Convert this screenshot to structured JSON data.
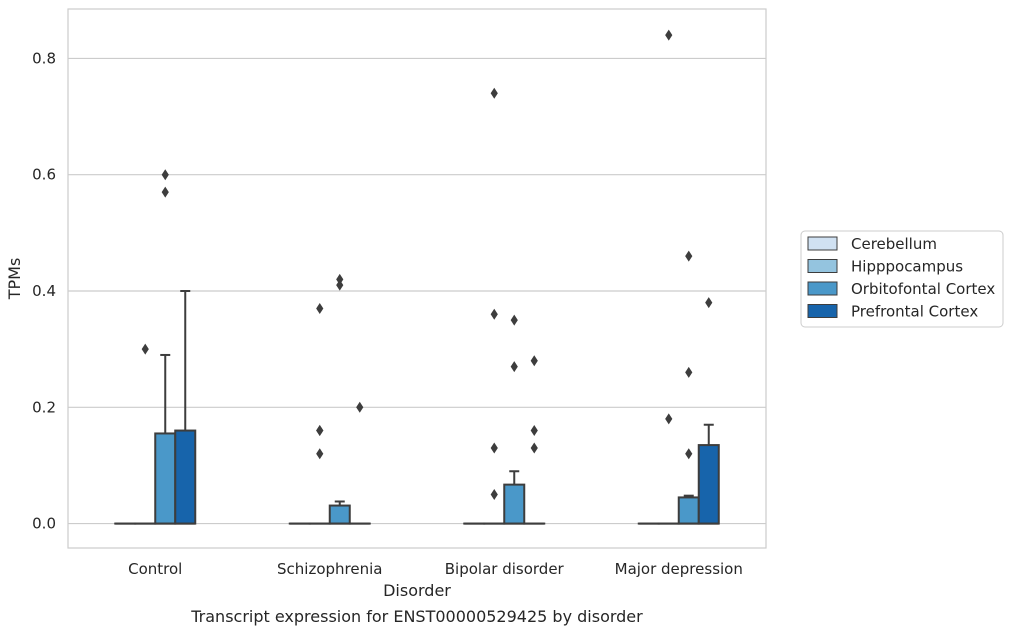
{
  "chart_data": {
    "type": "box",
    "xlabel": "Disorder",
    "ylabel": "TPMs",
    "caption": "Transcript expression for ENST00000529425 by disorder",
    "ylim": [
      -0.042,
      0.885
    ],
    "yticks": [
      0.0,
      0.2,
      0.4,
      0.6,
      0.8
    ],
    "ytick_labels": [
      "0.0",
      "0.2",
      "0.4",
      "0.6",
      "0.8"
    ],
    "grid": "horizontal",
    "legend_position": "right",
    "categories": [
      "Control",
      "Schizophrenia",
      "Bipolar disorder",
      "Major depression"
    ],
    "series": [
      {
        "name": "Cerebellum",
        "color": "#d0e1f2",
        "boxes": [
          {
            "q1": 0,
            "median": 0,
            "q3": 0,
            "whisker_low": 0,
            "whisker_high": 0,
            "outliers": []
          },
          {
            "q1": 0,
            "median": 0,
            "q3": 0,
            "whisker_low": 0,
            "whisker_high": 0,
            "outliers": []
          },
          {
            "q1": 0,
            "median": 0,
            "q3": 0,
            "whisker_low": 0,
            "whisker_high": 0,
            "outliers": []
          },
          {
            "q1": 0,
            "median": 0,
            "q3": 0,
            "whisker_low": 0,
            "whisker_high": 0,
            "outliers": []
          }
        ]
      },
      {
        "name": "Hipppocampus",
        "color": "#94c4df",
        "boxes": [
          {
            "q1": 0,
            "median": 0,
            "q3": 0,
            "whisker_low": 0,
            "whisker_high": 0,
            "outliers": [
              0.3
            ]
          },
          {
            "q1": 0,
            "median": 0,
            "q3": 0,
            "whisker_low": 0,
            "whisker_high": 0,
            "outliers": [
              0.16,
              0.37,
              0.16,
              0.12
            ]
          },
          {
            "q1": 0,
            "median": 0,
            "q3": 0,
            "whisker_low": 0,
            "whisker_high": 0,
            "outliers": [
              0.36,
              0.13,
              0.05,
              0.74
            ]
          },
          {
            "q1": 0,
            "median": 0,
            "q3": 0,
            "whisker_low": 0,
            "whisker_high": 0,
            "outliers": [
              0.84,
              0.18
            ]
          }
        ]
      },
      {
        "name": "Orbitofontal Cortex",
        "color": "#4a98c9",
        "boxes": [
          {
            "q1": 0,
            "median": 0,
            "q3": 0.155,
            "whisker_low": 0,
            "whisker_high": 0.29,
            "outliers": [
              0.6,
              0.57
            ]
          },
          {
            "q1": 0,
            "median": 0,
            "q3": 0.031,
            "whisker_low": 0,
            "whisker_high": 0.038,
            "outliers": [
              0.42,
              0.41
            ]
          },
          {
            "q1": 0,
            "median": 0,
            "q3": 0.067,
            "whisker_low": 0,
            "whisker_high": 0.09,
            "outliers": [
              0.35,
              0.27
            ]
          },
          {
            "q1": 0,
            "median": 0,
            "q3": 0.045,
            "whisker_low": 0,
            "whisker_high": 0.048,
            "outliers": [
              0.46,
              0.26,
              0.12
            ]
          }
        ]
      },
      {
        "name": "Prefrontal Cortex",
        "color": "#1764ab",
        "boxes": [
          {
            "q1": 0,
            "median": 0,
            "q3": 0.16,
            "whisker_low": 0,
            "whisker_high": 0.4,
            "outliers": []
          },
          {
            "q1": 0,
            "median": 0,
            "q3": 0,
            "whisker_low": 0,
            "whisker_high": 0,
            "outliers": [
              0.2
            ]
          },
          {
            "q1": 0,
            "median": 0,
            "q3": 0,
            "whisker_low": 0,
            "whisker_high": 0,
            "outliers": [
              0.28,
              0.16,
              0.13
            ]
          },
          {
            "q1": 0,
            "median": 0,
            "q3": 0.135,
            "whisker_low": 0,
            "whisker_high": 0.17,
            "outliers": [
              0.38
            ]
          }
        ]
      }
    ]
  }
}
